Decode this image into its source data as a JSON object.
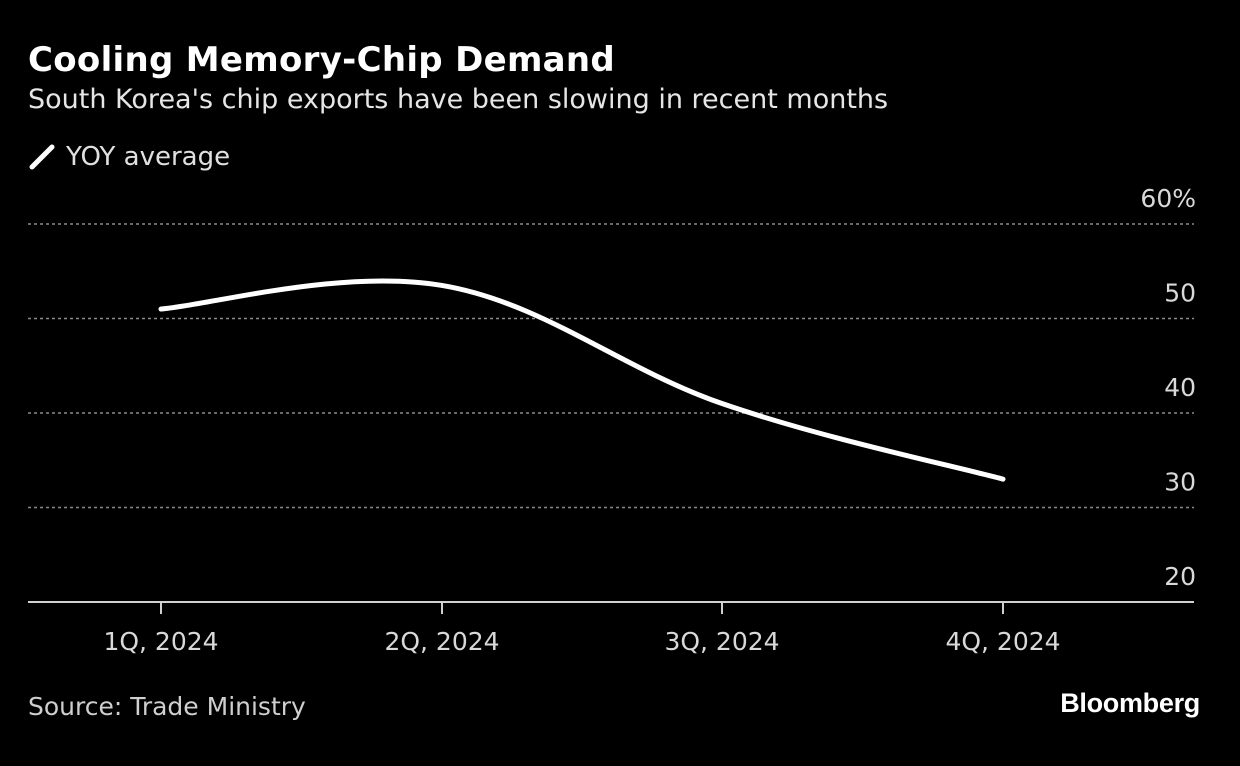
{
  "header": {
    "title": "Cooling Memory-Chip Demand",
    "subtitle": "South Korea's chip exports have been slowing in recent months"
  },
  "legend": {
    "label": "YOY average",
    "icon": "line-swatch-icon"
  },
  "footer": {
    "source": "Source: Trade Ministry",
    "brand": "Bloomberg"
  },
  "colors": {
    "background": "#000000",
    "line": "#ffffff",
    "grid": "#8a8a8a",
    "text": "#d9d9d9"
  },
  "chart_data": {
    "type": "line",
    "title": "Cooling Memory-Chip Demand",
    "subtitle": "South Korea's chip exports have been slowing in recent months",
    "xlabel": "",
    "ylabel": "",
    "categories": [
      "1Q, 2024",
      "2Q, 2024",
      "3Q, 2024",
      "4Q, 2024"
    ],
    "series": [
      {
        "name": "YOY average",
        "values": [
          51.0,
          53.5,
          41.0,
          33.0
        ]
      }
    ],
    "ylim": [
      20,
      60
    ],
    "yticks": [
      {
        "value": 60,
        "label": "60%"
      },
      {
        "value": 50,
        "label": "50"
      },
      {
        "value": 40,
        "label": "40"
      },
      {
        "value": 30,
        "label": "30"
      },
      {
        "value": 20,
        "label": "20"
      }
    ],
    "grid": true,
    "y_axis_side": "right",
    "legend_position": "top-left"
  }
}
